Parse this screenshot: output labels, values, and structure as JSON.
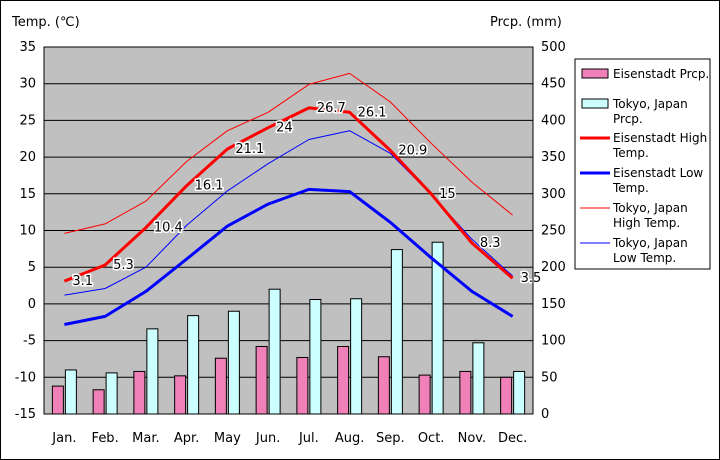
{
  "chart_data": {
    "type": "bar+line",
    "y1_title": "Temp. (℃)",
    "y2_title": "Prcp. (mm)",
    "y1_range": [
      -15,
      35
    ],
    "y1_ticks": [
      35,
      30,
      25,
      20,
      15,
      10,
      5,
      0,
      -5,
      -10,
      -15
    ],
    "y2_range": [
      0,
      500
    ],
    "y2_ticks": [
      500,
      450,
      400,
      350,
      300,
      250,
      200,
      150,
      100,
      50,
      0
    ],
    "months": [
      "Jan.",
      "Feb.",
      "Mar.",
      "Apr.",
      "May",
      "Jun.",
      "Jul.",
      "Aug.",
      "Sep.",
      "Oct.",
      "Nov.",
      "Dec."
    ],
    "precip_series": [
      {
        "name": "Eisenstadt Prcp.",
        "color": "#f080b8",
        "values": [
          38,
          33,
          58,
          52,
          76,
          92,
          77,
          92,
          78,
          53,
          58,
          50
        ]
      },
      {
        "name": "Tokyo, Japan Prcp.",
        "color": "#ccffff",
        "values": [
          60,
          56,
          116,
          134,
          140,
          170,
          156,
          157,
          224,
          234,
          97,
          58
        ]
      }
    ],
    "temp_series": [
      {
        "name": "Eisenstadt High Temp.",
        "color": "#ff0000",
        "width": 3,
        "values": [
          3.1,
          5.3,
          10.4,
          16.1,
          21.1,
          24,
          26.7,
          26.1,
          20.9,
          15,
          8.3,
          3.5
        ],
        "labels": [
          "3.1",
          "5.3",
          "10.4",
          "16.1",
          "21.1",
          "24",
          "26.7",
          "26.1",
          "20.9",
          "15",
          "8.3",
          "3.5"
        ]
      },
      {
        "name": "Eisenstadt Low Temp.",
        "color": "#0000ff",
        "width": 3,
        "values": [
          -2.8,
          -1.7,
          1.7,
          6.1,
          10.6,
          13.6,
          15.6,
          15.3,
          11.1,
          6.3,
          1.7,
          -1.7
        ]
      },
      {
        "name": "Tokyo, Japan High Temp.",
        "color": "#ff0000",
        "width": 1,
        "values": [
          9.6,
          10.9,
          14.0,
          19.4,
          23.6,
          26.1,
          29.9,
          31.4,
          27.5,
          21.9,
          16.6,
          12.1
        ]
      },
      {
        "name": "Tokyo, Japan Low Temp.",
        "color": "#0000ff",
        "width": 1,
        "values": [
          1.2,
          2.1,
          5.0,
          10.7,
          15.4,
          19.1,
          22.4,
          23.6,
          20.5,
          14.9,
          8.8,
          3.8
        ]
      }
    ],
    "legend": [
      {
        "kind": "box",
        "color": "#f080b8",
        "text": "Eisenstadt Prcp."
      },
      {
        "kind": "box",
        "color": "#ccffff",
        "text": "Tokyo, Japan Prcp."
      },
      {
        "kind": "line",
        "color": "#ff0000",
        "width": 3,
        "text": "Eisenstadt High Temp."
      },
      {
        "kind": "line",
        "color": "#0000ff",
        "width": 3,
        "text": "Eisenstadt Low Temp."
      },
      {
        "kind": "line",
        "color": "#ff0000",
        "width": 1,
        "text": "Tokyo, Japan High Temp."
      },
      {
        "kind": "line",
        "color": "#0000ff",
        "width": 1,
        "text": "Tokyo, Japan Low Temp."
      }
    ],
    "plot_background": "#c0c0c0",
    "legend_position": "right"
  }
}
